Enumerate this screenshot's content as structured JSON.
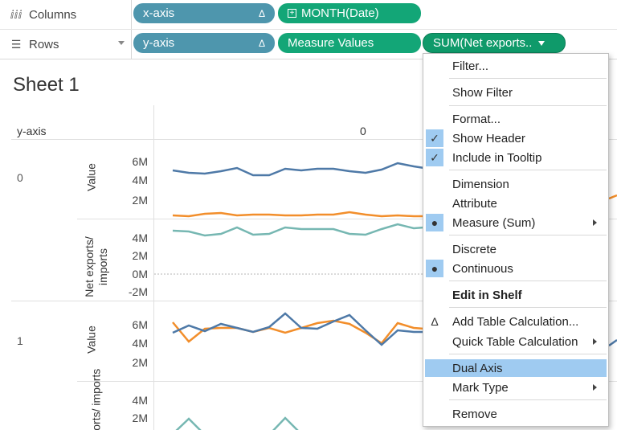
{
  "shelves": {
    "columns": {
      "label": "Columns",
      "icon": "columns-icon",
      "pills": [
        {
          "label": "x-axis",
          "badge": "Δ"
        },
        {
          "label": "MONTH(Date)",
          "badge": "⊞"
        }
      ]
    },
    "rows": {
      "label": "Rows",
      "icon": "rows-icon",
      "pills": [
        {
          "label": "y-axis",
          "badge": "Δ"
        },
        {
          "label": "Measure Values"
        },
        {
          "label": "SUM(Net exports.."
        }
      ]
    }
  },
  "sheet": {
    "title": "Sheet 1",
    "row_header": "y-axis",
    "column_value": "0",
    "rows": [
      {
        "value": "0",
        "panes": [
          {
            "label": "Value",
            "ticks": [
              "6M",
              "4M",
              "2M"
            ]
          },
          {
            "label": "Net exports/ imports",
            "ticks": [
              "4M",
              "2M",
              "0M",
              "-2M"
            ]
          }
        ]
      },
      {
        "value": "1",
        "panes": [
          {
            "label": "Value",
            "ticks": [
              "6M",
              "4M",
              "2M"
            ]
          },
          {
            "label": "exports/ imports",
            "ticks": [
              "4M",
              "2M"
            ]
          }
        ]
      }
    ]
  },
  "colors": {
    "series_blue": "#4e79a7",
    "series_orange": "#f28e2b",
    "series_teal": "#76b7b2",
    "pill_blue": "#4e96ad",
    "pill_green": "#13a677",
    "menu_highlight": "#9fcbf1"
  },
  "context_menu": {
    "items": [
      {
        "label": "Filter...",
        "mark": ""
      },
      {
        "label": "Show Filter",
        "mark": ""
      },
      {
        "label": "Format...",
        "mark": ""
      },
      {
        "label": "Show Header",
        "mark": "check"
      },
      {
        "label": "Include in Tooltip",
        "mark": "check"
      },
      {
        "label": "Dimension",
        "mark": ""
      },
      {
        "label": "Attribute",
        "mark": ""
      },
      {
        "label": "Measure (Sum)",
        "mark": "dot",
        "submenu": true
      },
      {
        "label": "Discrete",
        "mark": ""
      },
      {
        "label": "Continuous",
        "mark": "dot"
      },
      {
        "label": "Edit in Shelf",
        "mark": "",
        "bold": true
      },
      {
        "label": "Add Table Calculation...",
        "mark": "delta"
      },
      {
        "label": "Quick Table Calculation",
        "mark": "",
        "submenu": true
      },
      {
        "label": "Dual Axis",
        "mark": "",
        "highlighted": true
      },
      {
        "label": "Mark Type",
        "mark": "",
        "submenu": true
      },
      {
        "label": "Remove",
        "mark": ""
      }
    ]
  }
}
